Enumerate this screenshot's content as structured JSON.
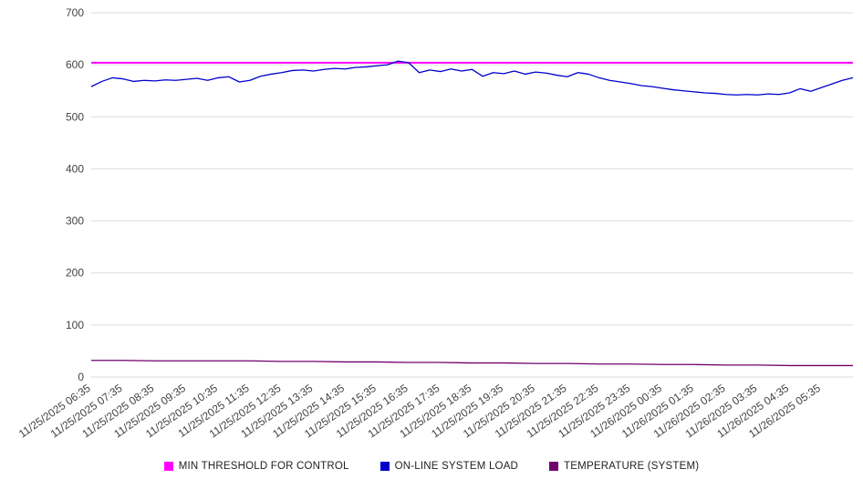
{
  "chart_data": {
    "type": "line",
    "title": "",
    "xlabel": "",
    "ylabel": "",
    "ylim": [
      0,
      700
    ],
    "yticks": [
      0,
      100,
      200,
      300,
      400,
      500,
      600,
      700
    ],
    "grid": true,
    "legend_position": "bottom",
    "x_tick_labels": [
      "11/25/2025 06:35",
      "11/25/2025 07:35",
      "11/25/2025 08:35",
      "11/25/2025 09:35",
      "11/25/2025 10:35",
      "11/25/2025 11:35",
      "11/25/2025 12:35",
      "11/25/2025 13:35",
      "11/25/2025 14:35",
      "11/25/2025 15:35",
      "11/25/2025 16:35",
      "11/25/2025 17:35",
      "11/25/2025 18:35",
      "11/25/2025 19:35",
      "11/25/2025 20:35",
      "11/25/2025 21:35",
      "11/25/2025 22:35",
      "11/25/2025 23:35",
      "11/26/2025 00:35",
      "11/26/2025 01:35",
      "11/26/2025 02:35",
      "11/26/2025 03:35",
      "11/26/2025 04:35",
      "11/26/2025 05:35"
    ],
    "x_span_hours": 24,
    "series": [
      {
        "name": "MIN THRESHOLD FOR CONTROL",
        "color": "#ff00ff",
        "width": 2,
        "values": [
          604,
          604
        ]
      },
      {
        "name": "ON-LINE SYSTEM LOAD",
        "color": "#0000cc",
        "width": 1.3,
        "values": [
          558,
          568,
          575,
          573,
          568,
          570,
          569,
          571,
          570,
          572,
          574,
          570,
          575,
          577,
          567,
          570,
          578,
          582,
          585,
          589,
          590,
          588,
          591,
          593,
          592,
          595,
          596,
          598,
          600,
          607,
          604,
          585,
          590,
          587,
          592,
          588,
          591,
          578,
          585,
          583,
          588,
          582,
          586,
          584,
          580,
          577,
          585,
          582,
          575,
          570,
          567,
          564,
          560,
          558,
          555,
          552,
          550,
          548,
          546,
          545,
          543,
          542,
          543,
          542,
          544,
          543,
          546,
          554,
          549,
          556,
          563,
          570,
          575
        ]
      },
      {
        "name": "TEMPERATURE (SYSTEM)",
        "color": "#70006e",
        "width": 1.3,
        "values": [
          32,
          32,
          31,
          31,
          31,
          31,
          30,
          30,
          29,
          29,
          28,
          28,
          27,
          27,
          26,
          26,
          25,
          25,
          24,
          24,
          23,
          23,
          22,
          22,
          22
        ]
      }
    ]
  }
}
